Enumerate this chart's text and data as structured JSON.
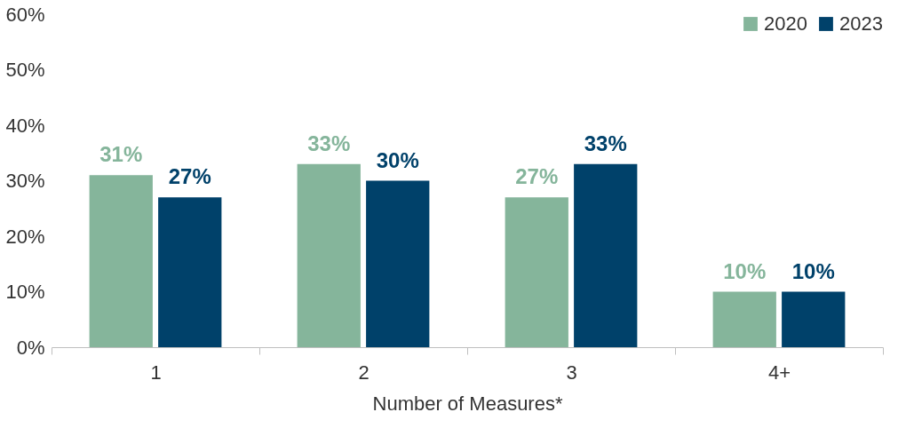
{
  "chart_data": {
    "type": "bar",
    "xlabel": "Number of Measures*",
    "categories": [
      "1",
      "2",
      "3",
      "4+"
    ],
    "series": [
      {
        "name": "2020",
        "color": "#85b59b",
        "values": [
          31,
          33,
          27,
          10
        ],
        "value_labels": [
          "31%",
          "33%",
          "27%",
          "10%"
        ]
      },
      {
        "name": "2023",
        "color": "#00416a",
        "values": [
          27,
          30,
          33,
          10
        ],
        "value_labels": [
          "27%",
          "30%",
          "33%",
          "10%"
        ]
      }
    ],
    "ylim": [
      0,
      60
    ],
    "yticks": [
      {
        "value": 0,
        "label": "0%"
      },
      {
        "value": 10,
        "label": "10%"
      },
      {
        "value": 20,
        "label": "20%"
      },
      {
        "value": 30,
        "label": "30%"
      },
      {
        "value": 40,
        "label": "40%"
      },
      {
        "value": 50,
        "label": "50%"
      },
      {
        "value": 60,
        "label": "60%"
      }
    ],
    "legend": "top right",
    "grid": false
  }
}
